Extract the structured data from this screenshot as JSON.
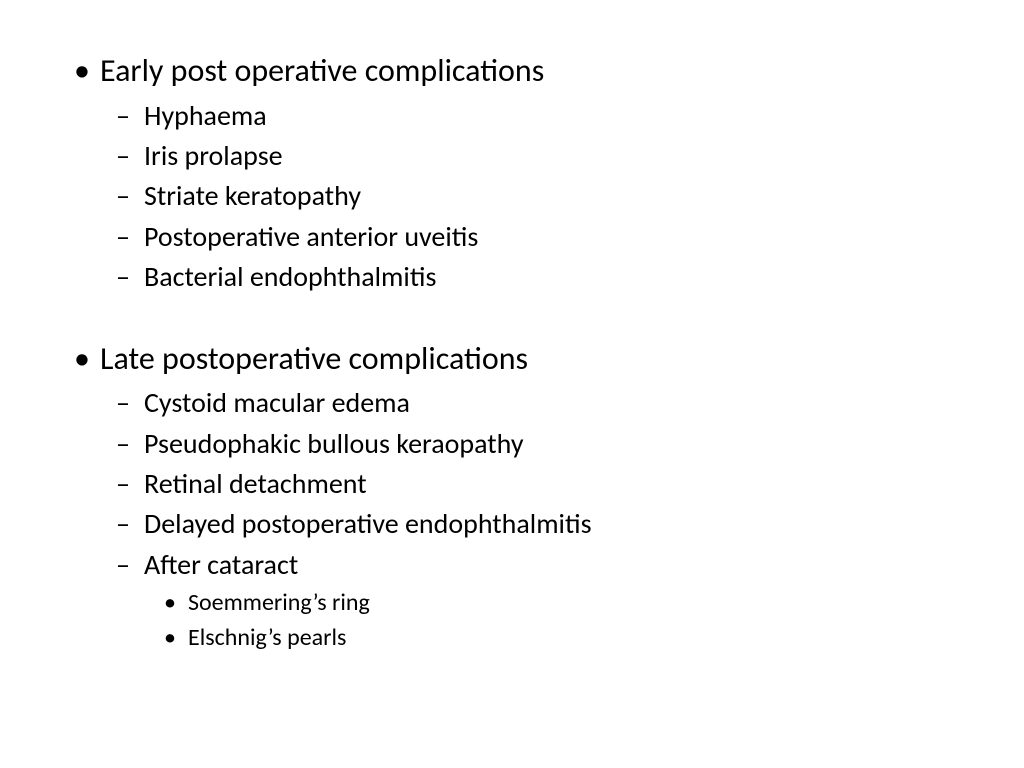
{
  "sections": [
    {
      "heading": "Early post operative complications",
      "items": [
        {
          "text": "Hyphaema"
        },
        {
          "text": "Iris prolapse"
        },
        {
          "text": "Striate keratopathy"
        },
        {
          "text": "Postoperative anterior uveitis"
        },
        {
          "text": "Bacterial endophthalmitis"
        }
      ]
    },
    {
      "heading": "Late postoperative complications",
      "items": [
        {
          "text": "Cystoid macular edema"
        },
        {
          "text": "Pseudophakic bullous keraopathy"
        },
        {
          "text": "Retinal detachment"
        },
        {
          "text": "Delayed postoperative endophthalmitis"
        },
        {
          "text": "After cataract",
          "subitems": [
            "Soemmering’s ring",
            "Elschnig’s pearls"
          ]
        }
      ]
    }
  ],
  "style": {
    "background_color": "#ffffff",
    "text_color": "#000000",
    "font_family": "Calibri",
    "level1_fontsize": 32,
    "level2_fontsize": 28,
    "level3_fontsize": 24,
    "level1_bullet": "•",
    "level2_bullet": "–",
    "level3_bullet": "•"
  }
}
